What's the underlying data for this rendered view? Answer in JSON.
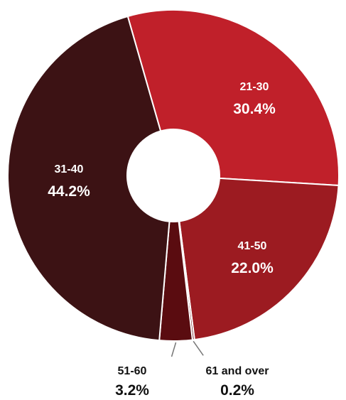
{
  "chart_data": {
    "type": "pie",
    "donut": true,
    "slices": [
      {
        "label": "21-30",
        "percent_label": "30.4%",
        "value": 30.4,
        "color": "#c0202a"
      },
      {
        "label": "41-50",
        "percent_label": "22.0%",
        "value": 22.0,
        "color": "#9c1b21"
      },
      {
        "label": "61 and over",
        "percent_label": "0.2%",
        "value": 0.2,
        "color": "#6b0f14"
      },
      {
        "label": "51-60",
        "percent_label": "3.2%",
        "value": 3.2,
        "color": "#5a0c10"
      },
      {
        "label": "31-40",
        "percent_label": "44.2%",
        "value": 44.2,
        "color": "#3c1214"
      }
    ],
    "label_color_inside": "#ffffff",
    "label_color_outside": "#111111",
    "separator_color": "#ffffff"
  }
}
